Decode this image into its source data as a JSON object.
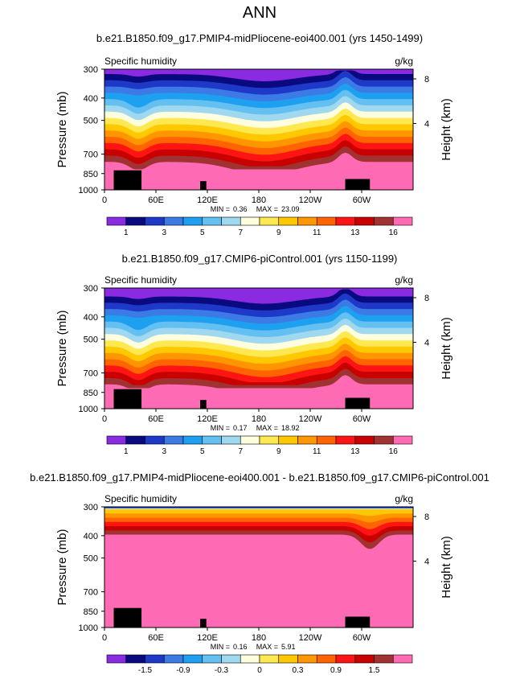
{
  "page_title": "ANN",
  "colors": {
    "purple": "#8a2be2",
    "navy": "#0a0a80",
    "blue": "#1e38c8",
    "royal": "#3c7ae6",
    "sky": "#1ea0f0",
    "lightsky": "#64c0f0",
    "paleblue": "#a0d8f0",
    "ivory": "#ffffe0",
    "yellow": "#ffe850",
    "gold": "#ffc800",
    "orange": "#ff9600",
    "darkorange": "#ff6400",
    "red": "#ff1414",
    "darkred": "#c80000",
    "brown": "#a03232",
    "pink": "#ff6ab4",
    "terrain": "#000000"
  },
  "chart_data": [
    {
      "type": "heatmap",
      "title": "b.e21.B1850.f09_g17.PMIP4-midPliocene-eoi400.001 (yrs 1450-1499)",
      "field_label": "Specific humidity",
      "units": "g/kg",
      "ylabel": "Pressure (mb)",
      "y2label": "Height (km)",
      "yticks": [
        "300",
        "400",
        "500",
        "700",
        "850",
        "1000"
      ],
      "y2ticks": [
        "8",
        "4"
      ],
      "xticks": [
        "0",
        "60E",
        "120E",
        "180",
        "120W",
        "60W"
      ],
      "xlim": [
        0,
        360
      ],
      "ylim": [
        1000,
        300
      ],
      "min_label": "MIN =",
      "min_value": "0.36",
      "max_label": "MAX =",
      "max_value": "23.09",
      "colorbar_labels": [
        "1",
        "3",
        "5",
        "7",
        "9",
        "11",
        "13",
        "16"
      ],
      "levels": [
        1,
        2,
        3,
        4,
        5,
        6,
        7,
        8,
        9,
        10,
        11,
        12,
        13,
        14,
        16
      ],
      "fill_colors": [
        "purple",
        "navy",
        "blue",
        "royal",
        "sky",
        "lightsky",
        "paleblue",
        "ivory",
        "yellow",
        "gold",
        "orange",
        "darkorange",
        "red",
        "darkred",
        "brown",
        "pink"
      ]
    },
    {
      "type": "heatmap",
      "title": "b.e21.B1850.f09_g17.CMIP6-piControl.001 (yrs 1150-1199)",
      "field_label": "Specific humidity",
      "units": "g/kg",
      "ylabel": "Pressure (mb)",
      "y2label": "Height (km)",
      "yticks": [
        "300",
        "400",
        "500",
        "700",
        "850",
        "1000"
      ],
      "y2ticks": [
        "8",
        "4"
      ],
      "xticks": [
        "0",
        "60E",
        "120E",
        "180",
        "120W",
        "60W"
      ],
      "xlim": [
        0,
        360
      ],
      "ylim": [
        1000,
        300
      ],
      "min_label": "MIN =",
      "min_value": "0.17",
      "max_label": "MAX =",
      "max_value": "18.92",
      "colorbar_labels": [
        "1",
        "3",
        "5",
        "7",
        "9",
        "11",
        "13",
        "16"
      ],
      "levels": [
        1,
        2,
        3,
        4,
        5,
        6,
        7,
        8,
        9,
        10,
        11,
        12,
        13,
        14,
        16
      ],
      "fill_colors": [
        "purple",
        "navy",
        "blue",
        "royal",
        "sky",
        "lightsky",
        "paleblue",
        "ivory",
        "yellow",
        "gold",
        "orange",
        "darkorange",
        "red",
        "darkred",
        "brown",
        "pink"
      ]
    },
    {
      "type": "heatmap",
      "title": "b.e21.B1850.f09_g17.PMIP4-midPliocene-eoi400.001 - b.e21.B1850.f09_g17.CMIP6-piControl.001",
      "field_label": "Specific humidity",
      "units": "g/kg",
      "ylabel": "Pressure (mb)",
      "y2label": "Height (km)",
      "yticks": [
        "300",
        "400",
        "500",
        "700",
        "850",
        "1000"
      ],
      "y2ticks": [
        "8",
        "4"
      ],
      "xticks": [
        "0",
        "60E",
        "120E",
        "180",
        "120W",
        "60W"
      ],
      "xlim": [
        0,
        360
      ],
      "ylim": [
        1000,
        300
      ],
      "min_label": "MIN =",
      "min_value": "0.16",
      "max_label": "MAX =",
      "max_value": "5.91",
      "colorbar_labels": [
        "-1.5",
        "-0.9",
        "-0.3",
        "0",
        "0.3",
        "0.9",
        "1.5"
      ],
      "levels": [
        -1.8,
        -1.5,
        -1.2,
        -0.9,
        -0.6,
        -0.3,
        -0.1,
        0,
        0.1,
        0.3,
        0.6,
        0.9,
        1.2,
        1.5,
        1.8
      ],
      "fill_colors": [
        "purple",
        "navy",
        "blue",
        "royal",
        "sky",
        "lightsky",
        "paleblue",
        "ivory",
        "yellow",
        "gold",
        "orange",
        "darkorange",
        "red",
        "darkred",
        "brown",
        "pink"
      ]
    }
  ]
}
